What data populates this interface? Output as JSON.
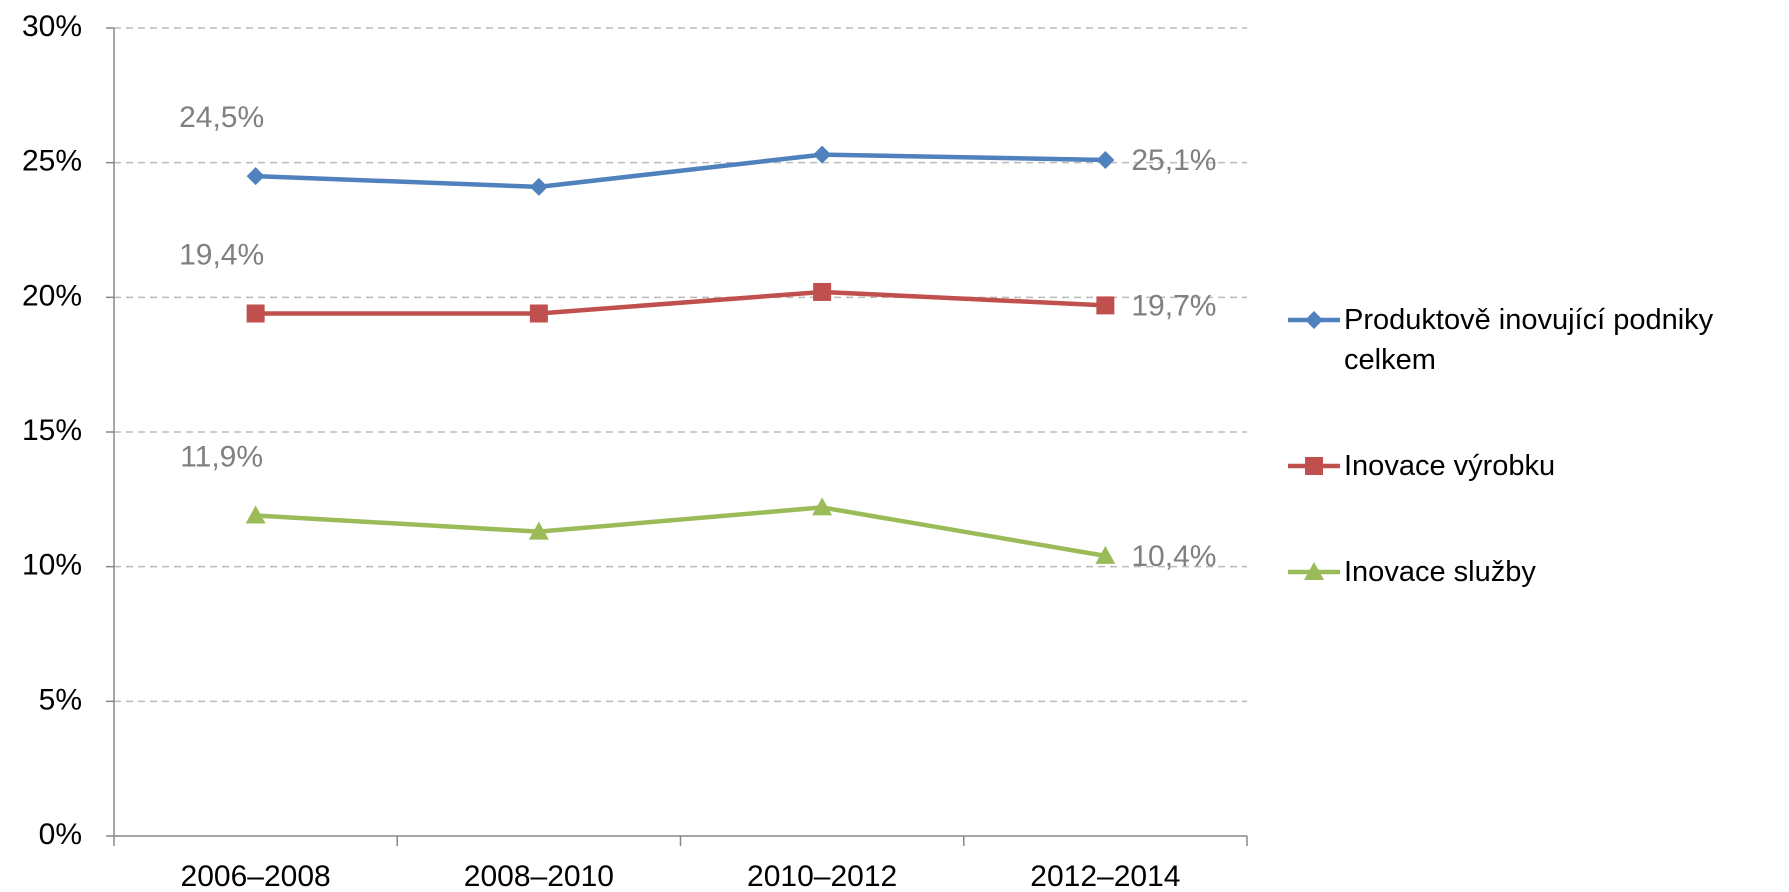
{
  "chart_data": {
    "type": "line",
    "categories": [
      "2006–2008",
      "2008–2010",
      "2010–2012",
      "2012–2014"
    ],
    "series": [
      {
        "name": "Produktově inovující podniky celkem",
        "color": "#4f81bd",
        "marker": "diamond",
        "values": [
          24.5,
          24.1,
          25.3,
          25.1
        ],
        "value_labels": [
          "24,5%",
          null,
          null,
          "25,1%"
        ]
      },
      {
        "name": "Inovace výrobku",
        "color": "#c0504d",
        "marker": "square",
        "values": [
          19.4,
          19.4,
          20.2,
          19.7
        ],
        "value_labels": [
          "19,4%",
          null,
          null,
          "19,7%"
        ]
      },
      {
        "name": "Inovace služby",
        "color": "#9bbb59",
        "marker": "triangle",
        "values": [
          11.9,
          11.3,
          12.2,
          10.4
        ],
        "value_labels": [
          "11,9%",
          null,
          null,
          "10,4%"
        ]
      }
    ],
    "ylim": [
      0,
      30
    ],
    "yticks": [
      {
        "value": 0,
        "label": "0%"
      },
      {
        "value": 5,
        "label": "5%"
      },
      {
        "value": 10,
        "label": "10%"
      },
      {
        "value": 15,
        "label": "15%"
      },
      {
        "value": 20,
        "label": "20%"
      },
      {
        "value": 25,
        "label": "25%"
      },
      {
        "value": 30,
        "label": "30%"
      }
    ],
    "grid": true,
    "legend": "right"
  }
}
